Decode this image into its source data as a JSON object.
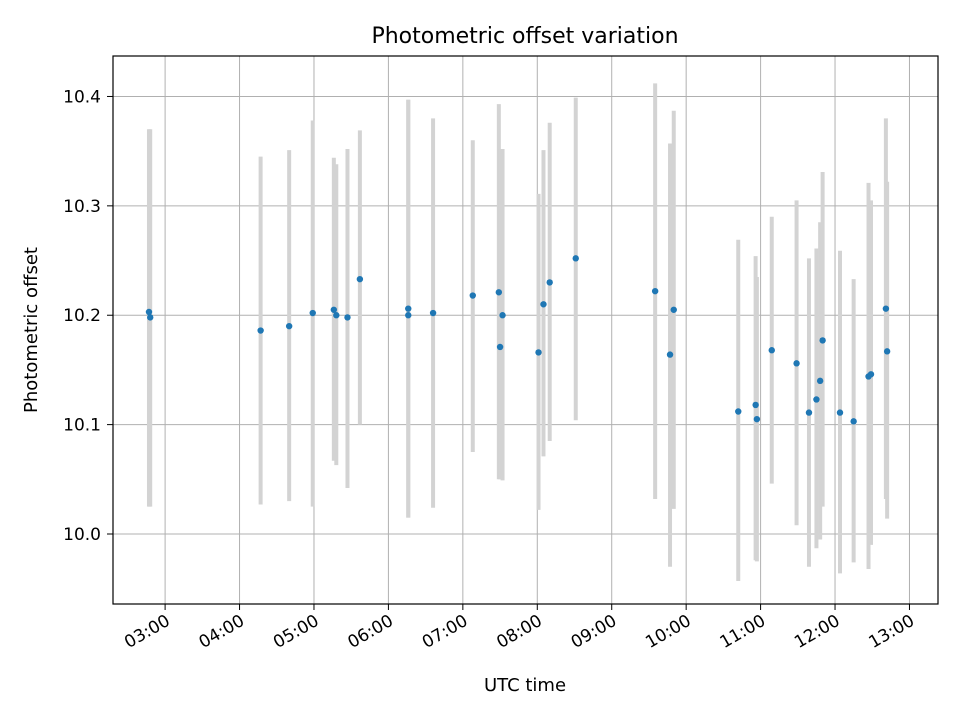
{
  "chart_data": {
    "type": "scatter",
    "title": "Photometric offset variation",
    "xlabel": "UTC time",
    "ylabel": "Photometric offset",
    "grid": true,
    "x_tick_labels": [
      "03:00",
      "04:00",
      "05:00",
      "06:00",
      "07:00",
      "08:00",
      "09:00",
      "10:00",
      "11:00",
      "12:00",
      "13:00"
    ],
    "y_tick_labels": [
      "10.0",
      "10.1",
      "10.2",
      "10.3",
      "10.4"
    ],
    "y_ticks": [
      10.0,
      10.1,
      10.2,
      10.3,
      10.4
    ],
    "xlim": [
      "02:18",
      "13:23"
    ],
    "ylim": [
      9.936,
      10.437
    ],
    "colors": {
      "marker": "#1f77b4",
      "errorbar": "#d3d3d3",
      "grid": "#b0b0b0"
    },
    "points": [
      {
        "x": "02:47",
        "y": 10.203,
        "ylow": 10.025,
        "yhigh": 10.37
      },
      {
        "x": "02:48",
        "y": 10.198,
        "ylow": 10.025,
        "yhigh": 10.37
      },
      {
        "x": "04:17",
        "y": 10.186,
        "ylow": 10.027,
        "yhigh": 10.345
      },
      {
        "x": "04:40",
        "y": 10.19,
        "ylow": 10.03,
        "yhigh": 10.351
      },
      {
        "x": "04:59",
        "y": 10.202,
        "ylow": 10.025,
        "yhigh": 10.378
      },
      {
        "x": "05:16",
        "y": 10.205,
        "ylow": 10.067,
        "yhigh": 10.344
      },
      {
        "x": "05:18",
        "y": 10.2,
        "ylow": 10.063,
        "yhigh": 10.338
      },
      {
        "x": "05:27",
        "y": 10.198,
        "ylow": 10.042,
        "yhigh": 10.352
      },
      {
        "x": "05:37",
        "y": 10.233,
        "ylow": 10.1,
        "yhigh": 10.369
      },
      {
        "x": "06:16",
        "y": 10.206,
        "ylow": 10.015,
        "yhigh": 10.397
      },
      {
        "x": "06:16",
        "y": 10.2,
        "ylow": 10.015,
        "yhigh": 10.397
      },
      {
        "x": "06:36",
        "y": 10.202,
        "ylow": 10.024,
        "yhigh": 10.38
      },
      {
        "x": "07:08",
        "y": 10.218,
        "ylow": 10.075,
        "yhigh": 10.36
      },
      {
        "x": "07:29",
        "y": 10.221,
        "ylow": 10.05,
        "yhigh": 10.393
      },
      {
        "x": "07:30",
        "y": 10.171,
        "ylow": 10.05,
        "yhigh": 10.352
      },
      {
        "x": "07:32",
        "y": 10.2,
        "ylow": 10.049,
        "yhigh": 10.352
      },
      {
        "x": "08:01",
        "y": 10.166,
        "ylow": 10.022,
        "yhigh": 10.311
      },
      {
        "x": "08:05",
        "y": 10.21,
        "ylow": 10.071,
        "yhigh": 10.351
      },
      {
        "x": "08:10",
        "y": 10.23,
        "ylow": 10.085,
        "yhigh": 10.376
      },
      {
        "x": "08:31",
        "y": 10.252,
        "ylow": 10.104,
        "yhigh": 10.399
      },
      {
        "x": "09:35",
        "y": 10.222,
        "ylow": 10.032,
        "yhigh": 10.412
      },
      {
        "x": "09:47",
        "y": 10.164,
        "ylow": 9.97,
        "yhigh": 10.357
      },
      {
        "x": "09:50",
        "y": 10.205,
        "ylow": 10.023,
        "yhigh": 10.387
      },
      {
        "x": "10:42",
        "y": 10.112,
        "ylow": 9.957,
        "yhigh": 10.269
      },
      {
        "x": "10:56",
        "y": 10.118,
        "ylow": 9.976,
        "yhigh": 10.254
      },
      {
        "x": "10:57",
        "y": 10.105,
        "ylow": 9.975,
        "yhigh": 10.235
      },
      {
        "x": "11:09",
        "y": 10.168,
        "ylow": 10.046,
        "yhigh": 10.29
      },
      {
        "x": "11:29",
        "y": 10.156,
        "ylow": 10.008,
        "yhigh": 10.305
      },
      {
        "x": "11:39",
        "y": 10.111,
        "ylow": 9.97,
        "yhigh": 10.252
      },
      {
        "x": "11:45",
        "y": 10.123,
        "ylow": 9.987,
        "yhigh": 10.261
      },
      {
        "x": "11:48",
        "y": 10.14,
        "ylow": 9.995,
        "yhigh": 10.285
      },
      {
        "x": "11:50",
        "y": 10.177,
        "ylow": 10.025,
        "yhigh": 10.331
      },
      {
        "x": "12:04",
        "y": 10.111,
        "ylow": 9.964,
        "yhigh": 10.259
      },
      {
        "x": "12:15",
        "y": 10.103,
        "ylow": 9.974,
        "yhigh": 10.233
      },
      {
        "x": "12:27",
        "y": 10.144,
        "ylow": 9.968,
        "yhigh": 10.321
      },
      {
        "x": "12:29",
        "y": 10.146,
        "ylow": 9.99,
        "yhigh": 10.305
      },
      {
        "x": "12:41",
        "y": 10.206,
        "ylow": 10.032,
        "yhigh": 10.38
      },
      {
        "x": "12:42",
        "y": 10.167,
        "ylow": 10.014,
        "yhigh": 10.322
      }
    ]
  }
}
